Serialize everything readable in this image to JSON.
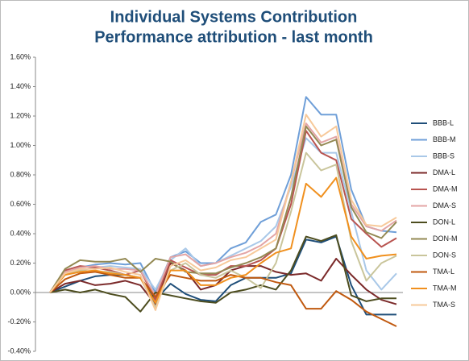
{
  "chart_data": {
    "type": "line",
    "title": "Individual Systems Contribution",
    "subtitle": "Performance attribution - last month",
    "categories": [
      null,
      null,
      null,
      null,
      null,
      null,
      null,
      null,
      null,
      null,
      null,
      null,
      null,
      null,
      null,
      null,
      null,
      null,
      null,
      null,
      null,
      null,
      null,
      null
    ],
    "ylim": [
      -0.4,
      1.6
    ],
    "yticks": [
      {
        "value": -0.4,
        "label": "-0.40%"
      },
      {
        "value": -0.2,
        "label": "-0.20%"
      },
      {
        "value": 0,
        "label": "0.00%"
      },
      {
        "value": 0.2,
        "label": "0.20%"
      },
      {
        "value": 0.4,
        "label": "0.40%"
      },
      {
        "value": 0.6,
        "label": "0.60%"
      },
      {
        "value": 0.8,
        "label": "0.80%"
      },
      {
        "value": 1.0,
        "label": "1.00%"
      },
      {
        "value": 1.2,
        "label": "1.20%"
      },
      {
        "value": 1.4,
        "label": "1.40%"
      },
      {
        "value": 1.6,
        "label": "1.60%"
      }
    ],
    "grid": false,
    "legend": "right",
    "series": [
      {
        "name": "BBB-L",
        "color": "#1f4e79",
        "values": [
          0,
          0.04,
          0.08,
          0.11,
          0.12,
          0.12,
          0.1,
          -0.05,
          0.06,
          -0.01,
          -0.05,
          -0.06,
          0.05,
          0.1,
          0.1,
          0.1,
          0.13,
          0.36,
          0.34,
          0.38,
          0.05,
          -0.15,
          -0.15,
          -0.15
        ]
      },
      {
        "name": "BBB-M",
        "color": "#6f9fd8",
        "values": [
          0,
          0.15,
          0.17,
          0.19,
          0.2,
          0.19,
          0.2,
          0.0,
          0.24,
          0.28,
          0.2,
          0.2,
          0.3,
          0.34,
          0.48,
          0.53,
          0.8,
          1.33,
          1.21,
          1.21,
          0.7,
          0.45,
          0.42,
          0.41
        ]
      },
      {
        "name": "BBB-S",
        "color": "#a9c8e8",
        "values": [
          0,
          0.12,
          0.15,
          0.17,
          0.18,
          0.17,
          0.16,
          0.02,
          0.22,
          0.3,
          0.18,
          0.2,
          0.25,
          0.3,
          0.35,
          0.45,
          0.72,
          1.05,
          0.95,
          0.95,
          0.55,
          0.15,
          0.02,
          0.13
        ]
      },
      {
        "name": "DMA-L",
        "color": "#7b2a2a",
        "values": [
          0,
          0.06,
          0.08,
          0.05,
          0.06,
          0.08,
          0.05,
          -0.08,
          0.2,
          0.15,
          0.02,
          0.05,
          0.15,
          0.18,
          0.18,
          0.14,
          0.12,
          0.13,
          0.08,
          0.23,
          0.12,
          0.02,
          -0.05,
          -0.08
        ]
      },
      {
        "name": "DMA-M",
        "color": "#b85450",
        "values": [
          0,
          0.15,
          0.18,
          0.17,
          0.15,
          0.12,
          0.15,
          -0.05,
          0.22,
          0.17,
          0.12,
          0.12,
          0.18,
          0.18,
          0.22,
          0.3,
          0.6,
          1.1,
          0.95,
          0.9,
          0.5,
          0.4,
          0.31,
          0.37
        ]
      },
      {
        "name": "DMA-S",
        "color": "#e3a5a5",
        "values": [
          0,
          0.14,
          0.17,
          0.18,
          0.16,
          0.16,
          0.15,
          -0.02,
          0.24,
          0.26,
          0.18,
          0.2,
          0.24,
          0.27,
          0.32,
          0.4,
          0.75,
          1.15,
          1.02,
          1.06,
          0.6,
          0.45,
          0.42,
          0.49
        ]
      },
      {
        "name": "DON-L",
        "color": "#4d4d1f",
        "values": [
          0,
          0.02,
          0,
          0.02,
          -0.01,
          -0.03,
          -0.13,
          0,
          -0.02,
          -0.04,
          -0.06,
          -0.07,
          0,
          0.02,
          0.05,
          0.02,
          0.15,
          0.38,
          0.35,
          0.39,
          -0.02,
          -0.06,
          -0.04,
          -0.04
        ]
      },
      {
        "name": "DON-M",
        "color": "#938953",
        "values": [
          0,
          0.16,
          0.22,
          0.21,
          0.21,
          0.23,
          0.14,
          0.23,
          0.21,
          0.14,
          0.13,
          0.13,
          0.17,
          0.2,
          0.24,
          0.3,
          0.65,
          1.13,
          1.0,
          1.04,
          0.58,
          0.41,
          0.37,
          0.48
        ]
      },
      {
        "name": "DON-S",
        "color": "#c9c59b",
        "values": [
          0,
          0.12,
          0.15,
          0.14,
          0.14,
          0.12,
          0.1,
          -0.1,
          0.15,
          0.2,
          0.12,
          0.1,
          0.15,
          0.1,
          0.03,
          0.2,
          0.55,
          0.95,
          0.83,
          0.87,
          0.35,
          0.08,
          0.2,
          0.25
        ]
      },
      {
        "name": "TMA-L",
        "color": "#c0590f",
        "values": [
          0,
          0.09,
          0.13,
          0.14,
          0.12,
          0.1,
          0.1,
          -0.03,
          0.12,
          0.1,
          0.08,
          0.08,
          0.12,
          0.1,
          0.1,
          0.07,
          0.05,
          -0.11,
          -0.11,
          0.01,
          -0.05,
          -0.13,
          -0.18,
          -0.23
        ]
      },
      {
        "name": "TMA-M",
        "color": "#f0901e",
        "values": [
          0,
          0.12,
          0.14,
          0.15,
          0.13,
          0.12,
          0.1,
          -0.07,
          0.15,
          0.15,
          0.05,
          0.05,
          0.1,
          0.12,
          0.2,
          0.27,
          0.3,
          0.74,
          0.65,
          0.78,
          0.38,
          0.23,
          0.25,
          0.26
        ]
      },
      {
        "name": "TMA-S",
        "color": "#f7c99a",
        "values": [
          0,
          0.13,
          0.16,
          0.16,
          0.17,
          0.14,
          0.12,
          -0.12,
          0.18,
          0.22,
          0.15,
          0.17,
          0.22,
          0.24,
          0.3,
          0.36,
          0.75,
          1.21,
          1.06,
          1.13,
          0.63,
          0.46,
          0.45,
          0.51
        ]
      }
    ]
  }
}
